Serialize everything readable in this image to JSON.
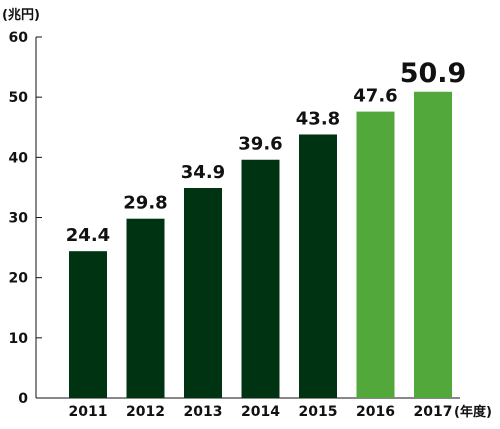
{
  "chart_data": {
    "type": "bar",
    "ylabel": "(兆円)",
    "xlabel": "(年度)",
    "ylim": [
      0,
      60
    ],
    "y_ticks": [
      "0",
      "10",
      "20",
      "30",
      "40",
      "50",
      "60"
    ],
    "categories": [
      "2011",
      "2012",
      "2013",
      "2014",
      "2015",
      "2016",
      "2017"
    ],
    "values": [
      24.4,
      29.8,
      34.9,
      39.6,
      43.8,
      47.6,
      50.9
    ],
    "value_labels": [
      "24.4",
      "29.8",
      "34.9",
      "39.6",
      "43.8",
      "47.6",
      "50.9"
    ],
    "bar_colors": [
      "#003311",
      "#003311",
      "#003311",
      "#003311",
      "#003311",
      "#52a83a",
      "#52a83a"
    ],
    "highlight_index": 6,
    "grid": false,
    "legend": "none"
  }
}
